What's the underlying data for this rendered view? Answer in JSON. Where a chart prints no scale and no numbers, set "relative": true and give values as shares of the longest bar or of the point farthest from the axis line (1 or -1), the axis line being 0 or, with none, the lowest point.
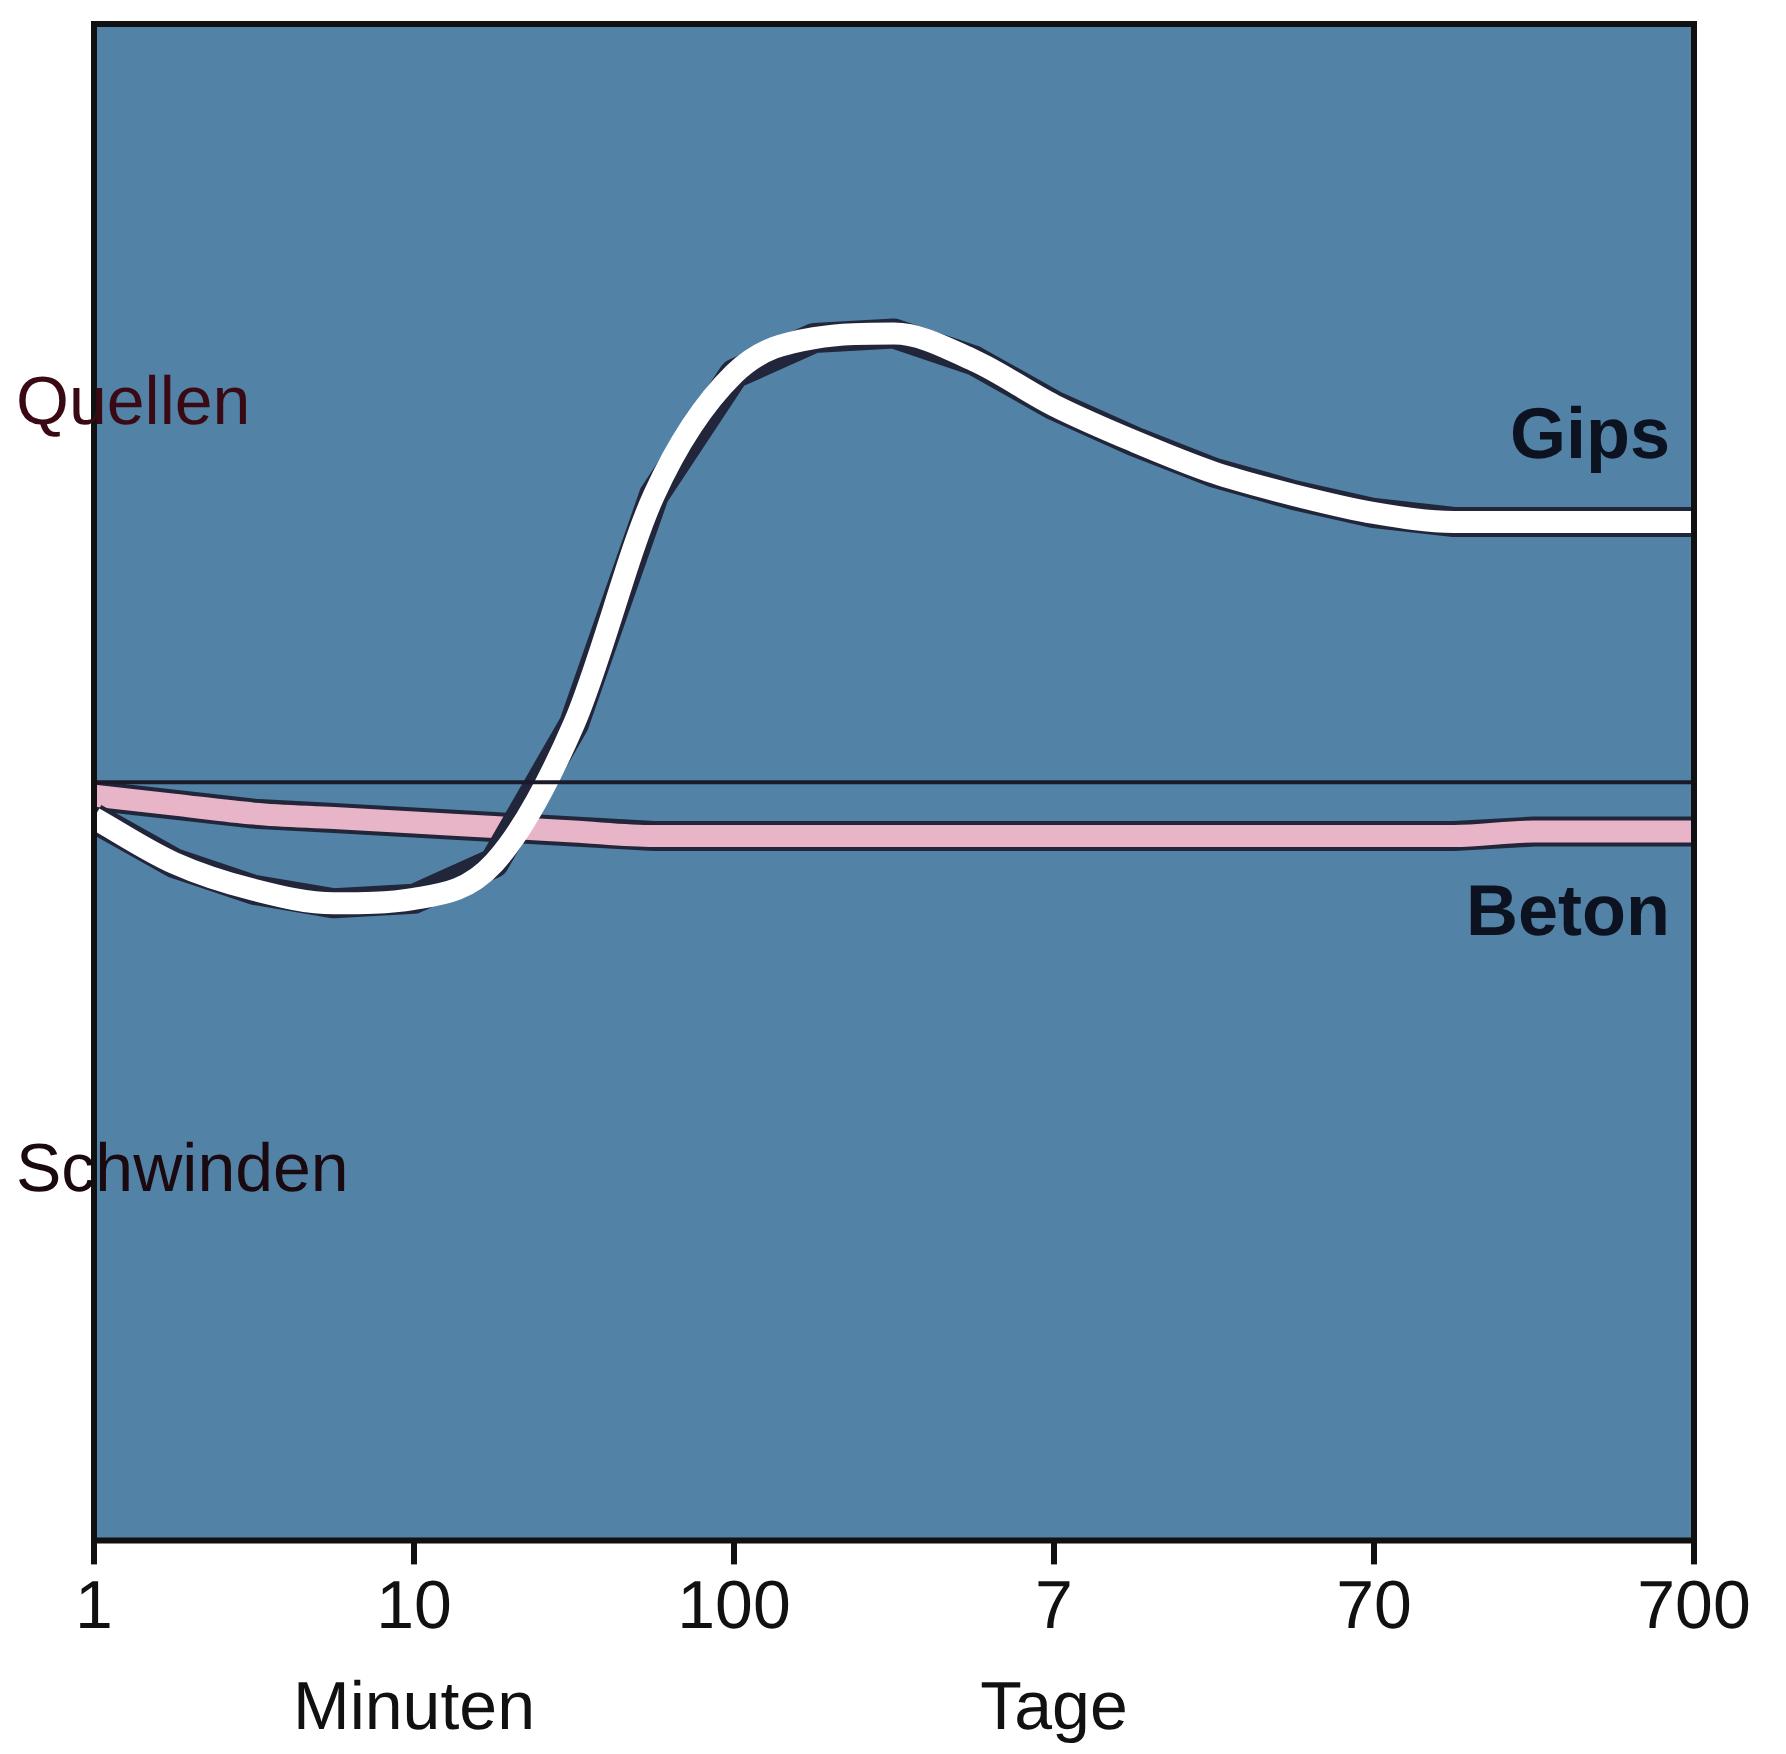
{
  "chart_data": {
    "type": "line",
    "relative": true,
    "categories": [
      "1",
      null,
      null,
      null,
      "10",
      null,
      null,
      null,
      "100",
      null,
      null,
      null,
      "7",
      null,
      null,
      null,
      "70",
      null,
      null,
      null,
      "700"
    ],
    "series": [
      {
        "name": "Gips",
        "color": "#ffffff",
        "values": [
          -0.08,
          -0.18,
          -0.24,
          -0.27,
          -0.26,
          -0.18,
          0.13,
          0.64,
          0.91,
          0.99,
          1,
          0.94,
          0.84,
          0.76,
          0.69,
          0.64,
          0.6,
          0.58,
          0.58,
          0.58,
          0.58
        ]
      },
      {
        "name": "Beton",
        "color": "#e8b4c8",
        "values": [
          -0.03,
          -0.05,
          -0.07,
          -0.08,
          -0.09,
          -0.1,
          -0.11,
          -0.12,
          -0.12,
          -0.12,
          -0.12,
          -0.12,
          -0.12,
          -0.12,
          -0.12,
          -0.12,
          -0.12,
          -0.12,
          -0.11,
          -0.11,
          -0.11
        ]
      }
    ],
    "ref_lines": [
      {
        "axis": "y",
        "value": 0,
        "color": "#1a1a2a"
      }
    ],
    "annotations": [
      "Quellen",
      "Schwinden",
      "Minuten",
      "Tage"
    ],
    "legend": false,
    "grid": false,
    "marker": "none",
    "line_style": "solid"
  }
}
